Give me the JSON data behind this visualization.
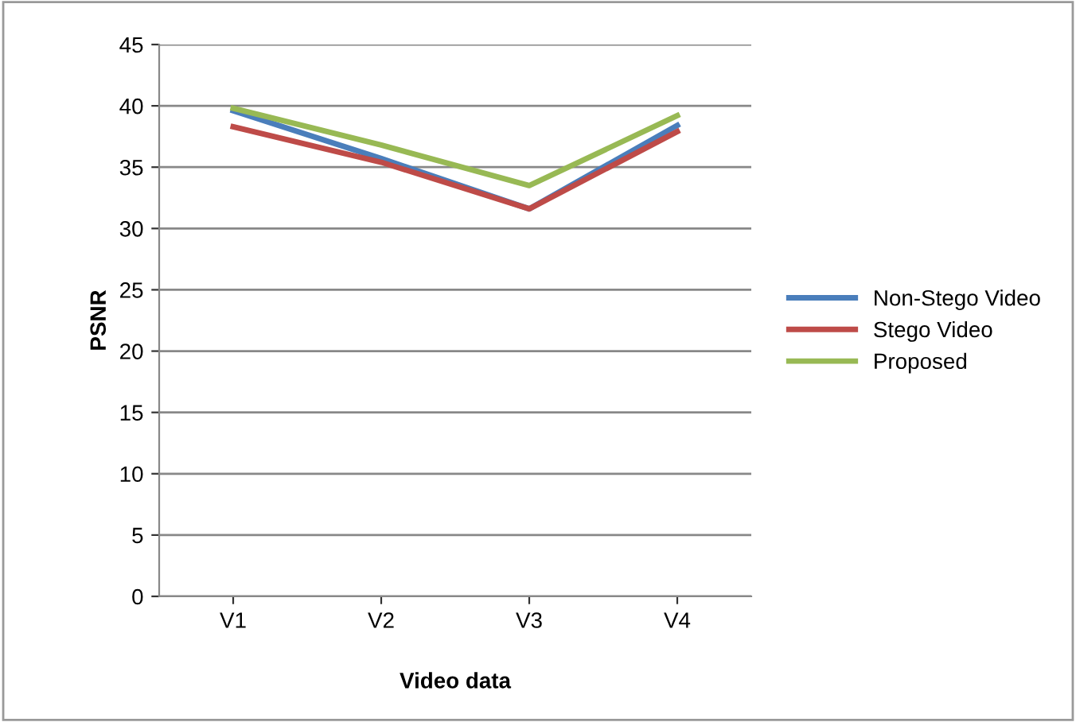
{
  "chart_data": {
    "type": "line",
    "xlabel": "Video data",
    "ylabel": "PSNR",
    "categories": [
      "V1",
      "V2",
      "V3",
      "V4"
    ],
    "series": [
      {
        "name": "Non-Stego Video",
        "color": "#4a7ebb",
        "values": [
          39.6,
          35.7,
          31.6,
          38.4
        ]
      },
      {
        "name": "Stego Video",
        "color": "#be4b48",
        "values": [
          38.3,
          35.4,
          31.6,
          37.9
        ]
      },
      {
        "name": "Proposed",
        "color": "#98b954",
        "values": [
          39.8,
          36.8,
          33.5,
          39.2
        ]
      }
    ],
    "ylim": [
      0,
      45
    ],
    "yticks": [
      0,
      5,
      10,
      15,
      20,
      25,
      30,
      35,
      40,
      45
    ],
    "grid": "y",
    "legend": "right",
    "marker": "none"
  }
}
